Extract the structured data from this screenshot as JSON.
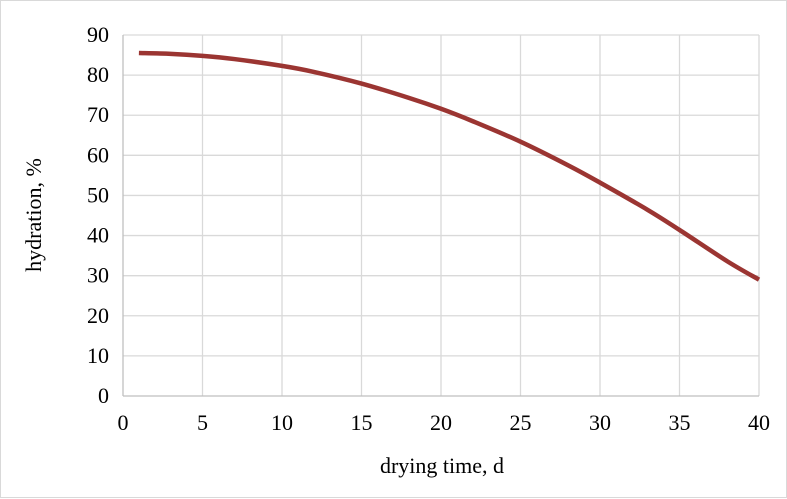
{
  "chart_data": {
    "type": "line",
    "xlabel": "drying time, d",
    "ylabel": "hydration, %",
    "xlim": [
      0,
      40
    ],
    "ylim": [
      0,
      90
    ],
    "xticks": [
      0,
      5,
      10,
      15,
      20,
      25,
      30,
      35,
      40
    ],
    "yticks": [
      0,
      10,
      20,
      30,
      40,
      50,
      60,
      70,
      80,
      90
    ],
    "grid": true,
    "legend": "none",
    "series": [
      {
        "color": "#9b3532",
        "x": [
          1,
          3,
          5,
          7,
          10,
          12,
          15,
          18,
          20,
          22,
          25,
          28,
          30,
          33,
          35,
          38,
          40
        ],
        "y": [
          85.5,
          85.3,
          84.8,
          84.0,
          82.3,
          80.8,
          77.9,
          74.3,
          71.6,
          68.5,
          63.4,
          57.5,
          53.2,
          46.4,
          41.4,
          33.6,
          29.0
        ]
      }
    ]
  }
}
